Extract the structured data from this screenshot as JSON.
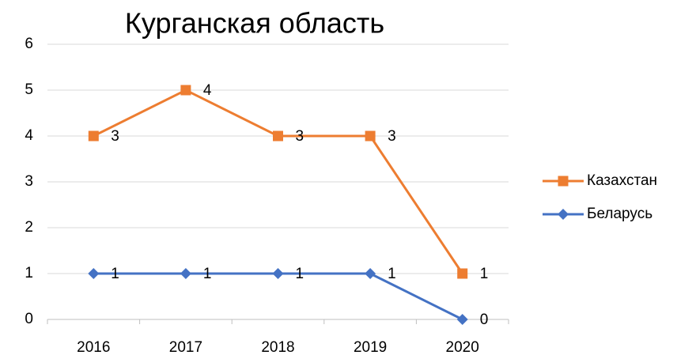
{
  "chart_data": {
    "type": "line",
    "stacked": true,
    "title": "Курганская область",
    "categories": [
      "2016",
      "2017",
      "2018",
      "2019",
      "2020"
    ],
    "series": [
      {
        "name": "Беларусь",
        "color": "#4472c4",
        "marker": "diamond",
        "values": [
          1,
          1,
          1,
          1,
          0
        ]
      },
      {
        "name": "Казахстан",
        "color": "#ed7d31",
        "marker": "square",
        "values": [
          3,
          4,
          3,
          3,
          1
        ]
      }
    ],
    "ylim": [
      0,
      6
    ],
    "yticks": [
      0,
      1,
      2,
      3,
      4,
      5,
      6
    ],
    "grid": true,
    "legend": "right",
    "data_labels": true
  }
}
